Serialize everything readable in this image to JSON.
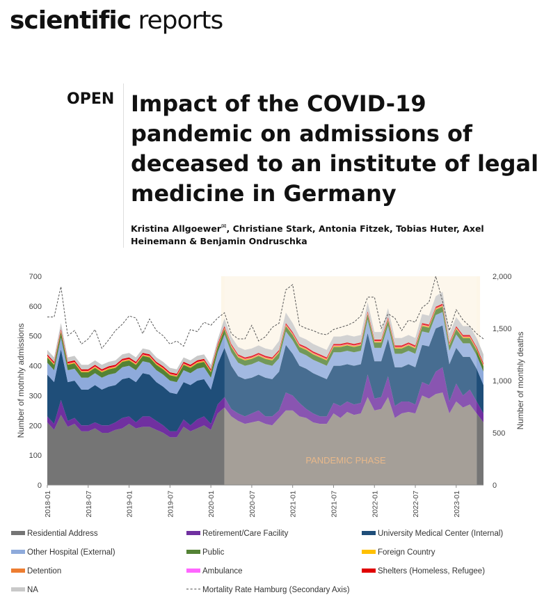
{
  "journal": {
    "bold": "scientific",
    "regular": "reports"
  },
  "badge": "OPEN",
  "title": "Impact of the COVID-19 pandemic on admissions of deceased to an institute of legal medicine in Germany",
  "authors": {
    "first": "Kristina Allgoewer",
    "mail_icon": "envelope-icon",
    "rest": ", Christiane Stark, Antonia Fitzek, Tobias Huter, Axel Heinemann & Benjamin Ondruschka"
  },
  "chart_data": {
    "type": "area",
    "stacked": true,
    "months": [
      "2018-01",
      "2018-02",
      "2018-03",
      "2018-04",
      "2018-05",
      "2018-06",
      "2018-07",
      "2018-08",
      "2018-09",
      "2018-10",
      "2018-11",
      "2018-12",
      "2019-01",
      "2019-02",
      "2019-03",
      "2019-04",
      "2019-05",
      "2019-06",
      "2019-07",
      "2019-08",
      "2019-09",
      "2019-10",
      "2019-11",
      "2019-12",
      "2020-01",
      "2020-02",
      "2020-03",
      "2020-04",
      "2020-05",
      "2020-06",
      "2020-07",
      "2020-08",
      "2020-09",
      "2020-10",
      "2020-11",
      "2020-12",
      "2021-01",
      "2021-02",
      "2021-03",
      "2021-04",
      "2021-05",
      "2021-06",
      "2021-07",
      "2021-08",
      "2021-09",
      "2021-10",
      "2021-11",
      "2021-12",
      "2022-01",
      "2022-02",
      "2022-03",
      "2022-04",
      "2022-05",
      "2022-06",
      "2022-07",
      "2022-08",
      "2022-09",
      "2022-10",
      "2022-11",
      "2022-12",
      "2023-01",
      "2023-02",
      "2023-03",
      "2023-04",
      "2023-05"
    ],
    "xtick_labels": [
      "2018-01",
      "2018-07",
      "2019-01",
      "2019-07",
      "2020-01",
      "2020-07",
      "2021-01",
      "2021-07",
      "2022-01",
      "2022-07",
      "2023-01"
    ],
    "ylabel": "Number of  motnhly admissions",
    "ylim": [
      0,
      700
    ],
    "yticks": [
      "0",
      "100",
      "200",
      "300",
      "400",
      "500",
      "600",
      "700"
    ],
    "y2label": "Number of monthly deaths",
    "y2lim": [
      0,
      2000
    ],
    "y2ticks": [
      "0",
      "500",
      "1,000",
      "1,500",
      "2,000"
    ],
    "annotation": "PANDEMIC PHASE",
    "pandemic_phase": {
      "start": "2020-03",
      "end": "2023-04"
    },
    "series": [
      {
        "name": "Residential Address",
        "color": "#757575",
        "pandemic_color": "#928a82",
        "values": [
          210,
          185,
          235,
          195,
          205,
          180,
          180,
          190,
          175,
          175,
          185,
          190,
          205,
          190,
          195,
          195,
          185,
          175,
          160,
          160,
          195,
          180,
          190,
          200,
          185,
          240,
          260,
          230,
          215,
          205,
          210,
          215,
          205,
          200,
          225,
          250,
          250,
          230,
          225,
          210,
          205,
          205,
          240,
          225,
          245,
          235,
          240,
          295,
          250,
          255,
          295,
          225,
          240,
          245,
          240,
          300,
          290,
          305,
          310,
          240,
          280,
          260,
          270,
          240,
          210
        ]
      },
      {
        "name": "Retirement/Care Facility",
        "color": "#7030a0",
        "values": [
          20,
          20,
          50,
          20,
          20,
          20,
          20,
          20,
          25,
          25,
          25,
          35,
          25,
          20,
          35,
          35,
          30,
          25,
          20,
          20,
          25,
          20,
          30,
          30,
          20,
          30,
          35,
          25,
          25,
          25,
          30,
          35,
          25,
          30,
          25,
          60,
          50,
          45,
          30,
          30,
          25,
          25,
          35,
          40,
          35,
          35,
          35,
          75,
          40,
          40,
          70,
          40,
          40,
          35,
          30,
          45,
          45,
          75,
          85,
          40,
          60,
          40,
          50,
          40,
          30
        ]
      },
      {
        "name": "University Medical Center (Internal)",
        "color": "#1f4e79",
        "values": [
          140,
          140,
          170,
          130,
          125,
          120,
          120,
          125,
          120,
          130,
          125,
          130,
          130,
          135,
          145,
          140,
          130,
          130,
          130,
          125,
          125,
          135,
          130,
          125,
          115,
          135,
          165,
          145,
          125,
          125,
          120,
          120,
          130,
          125,
          130,
          160,
          140,
          125,
          135,
          135,
          135,
          125,
          125,
          135,
          125,
          130,
          130,
          140,
          125,
          120,
          125,
          130,
          115,
          125,
          125,
          125,
          130,
          145,
          140,
          125,
          120,
          130,
          110,
          110,
          95
        ]
      },
      {
        "name": "Other Hospital (External)",
        "color": "#8eaadb",
        "values": [
          40,
          40,
          40,
          40,
          40,
          40,
          40,
          40,
          40,
          40,
          40,
          40,
          40,
          40,
          40,
          40,
          40,
          40,
          40,
          40,
          40,
          40,
          40,
          40,
          40,
          40,
          45,
          45,
          45,
          45,
          45,
          45,
          45,
          45,
          45,
          45,
          45,
          45,
          45,
          45,
          45,
          45,
          45,
          45,
          45,
          45,
          45,
          45,
          45,
          45,
          45,
          45,
          45,
          45,
          45,
          45,
          45,
          45,
          45,
          45,
          45,
          45,
          45,
          45,
          45
        ]
      },
      {
        "name": "Public",
        "color": "#548235",
        "values": [
          18,
          18,
          18,
          18,
          18,
          18,
          18,
          18,
          18,
          18,
          18,
          18,
          18,
          18,
          18,
          18,
          18,
          18,
          18,
          18,
          18,
          18,
          18,
          18,
          18,
          18,
          18,
          18,
          18,
          18,
          18,
          18,
          18,
          18,
          18,
          18,
          18,
          18,
          18,
          18,
          18,
          18,
          18,
          18,
          18,
          18,
          18,
          18,
          18,
          18,
          18,
          18,
          18,
          18,
          18,
          18,
          18,
          18,
          18,
          18,
          18,
          18,
          18,
          18,
          18
        ]
      },
      {
        "name": "Foreign Country",
        "color": "#ffc000",
        "values": [
          2,
          2,
          2,
          2,
          2,
          2,
          2,
          2,
          2,
          2,
          2,
          2,
          2,
          2,
          2,
          2,
          2,
          2,
          2,
          2,
          2,
          2,
          2,
          2,
          2,
          2,
          2,
          2,
          2,
          2,
          2,
          2,
          2,
          2,
          2,
          2,
          2,
          2,
          2,
          2,
          2,
          2,
          2,
          2,
          2,
          2,
          2,
          2,
          2,
          2,
          2,
          2,
          2,
          2,
          2,
          2,
          2,
          2,
          2,
          2,
          2,
          2,
          2,
          2,
          2
        ]
      },
      {
        "name": "Detention",
        "color": "#ed7d31",
        "values": [
          2,
          2,
          2,
          2,
          2,
          2,
          2,
          2,
          2,
          2,
          2,
          2,
          2,
          2,
          2,
          2,
          2,
          2,
          2,
          2,
          2,
          2,
          2,
          2,
          2,
          2,
          2,
          2,
          2,
          2,
          2,
          2,
          2,
          2,
          2,
          2,
          2,
          2,
          2,
          2,
          2,
          2,
          2,
          2,
          2,
          2,
          2,
          2,
          2,
          2,
          2,
          2,
          2,
          2,
          2,
          2,
          2,
          2,
          2,
          2,
          2,
          2,
          2,
          2,
          2
        ]
      },
      {
        "name": "Ambulance",
        "color": "#ff66ff",
        "values": [
          1,
          1,
          1,
          1,
          1,
          1,
          1,
          1,
          1,
          1,
          1,
          1,
          1,
          1,
          1,
          1,
          1,
          1,
          1,
          1,
          1,
          1,
          1,
          1,
          1,
          1,
          1,
          1,
          1,
          1,
          1,
          1,
          1,
          1,
          1,
          1,
          1,
          1,
          1,
          1,
          1,
          1,
          1,
          1,
          1,
          1,
          1,
          1,
          1,
          1,
          1,
          1,
          1,
          1,
          1,
          1,
          1,
          1,
          1,
          1,
          1,
          1,
          1,
          1,
          1
        ]
      },
      {
        "name": "Shelters (Homeless, Refugee)",
        "color": "#e00000",
        "values": [
          5,
          5,
          5,
          5,
          5,
          5,
          5,
          5,
          5,
          5,
          5,
          5,
          5,
          5,
          5,
          5,
          5,
          5,
          5,
          5,
          5,
          5,
          5,
          5,
          5,
          5,
          5,
          5,
          5,
          5,
          5,
          5,
          5,
          5,
          5,
          5,
          5,
          5,
          5,
          5,
          5,
          5,
          5,
          5,
          5,
          5,
          5,
          5,
          5,
          5,
          5,
          5,
          5,
          5,
          5,
          5,
          5,
          5,
          5,
          5,
          5,
          5,
          5,
          5,
          5
        ]
      },
      {
        "name": "NA",
        "color": "#c9c9c9",
        "values": [
          15,
          15,
          20,
          15,
          15,
          15,
          15,
          15,
          15,
          15,
          15,
          15,
          15,
          15,
          15,
          15,
          15,
          15,
          15,
          15,
          15,
          15,
          15,
          15,
          15,
          15,
          25,
          25,
          25,
          25,
          25,
          25,
          25,
          25,
          30,
          35,
          30,
          25,
          25,
          25,
          25,
          25,
          25,
          25,
          25,
          25,
          25,
          30,
          25,
          25,
          30,
          25,
          25,
          25,
          25,
          30,
          30,
          35,
          40,
          30,
          30,
          30,
          30,
          30,
          30
        ]
      }
    ],
    "secondary_series": {
      "name": "Mortality Rate Hamburg (Secondary Axis)",
      "color": "#555555",
      "values": [
        1610,
        1610,
        1900,
        1430,
        1480,
        1350,
        1400,
        1490,
        1310,
        1390,
        1480,
        1540,
        1620,
        1600,
        1450,
        1590,
        1480,
        1430,
        1350,
        1380,
        1330,
        1490,
        1470,
        1560,
        1530,
        1600,
        1650,
        1450,
        1400,
        1400,
        1530,
        1380,
        1420,
        1510,
        1550,
        1870,
        1920,
        1530,
        1500,
        1480,
        1450,
        1440,
        1490,
        1510,
        1530,
        1560,
        1620,
        1800,
        1800,
        1500,
        1640,
        1600,
        1480,
        1580,
        1560,
        1700,
        1750,
        2000,
        1760,
        1480,
        1680,
        1580,
        1520,
        1450,
        1400
      ]
    }
  },
  "legend": [
    {
      "label": "Residential Address",
      "color": "#757575"
    },
    {
      "label": "Retirement/Care Facility",
      "color": "#7030a0"
    },
    {
      "label": "University Medical Center (Internal)",
      "color": "#1f4e79"
    },
    {
      "label": "Other Hospital (External)",
      "color": "#8eaadb"
    },
    {
      "label": "Public",
      "color": "#548235"
    },
    {
      "label": "Foreign Country",
      "color": "#ffc000"
    },
    {
      "label": "Detention",
      "color": "#ed7d31"
    },
    {
      "label": "Ambulance",
      "color": "#ff66ff"
    },
    {
      "label": "Shelters (Homeless, Refugee)",
      "color": "#e00000"
    },
    {
      "label": "NA",
      "color": "#c9c9c9"
    },
    {
      "label": "Mortality Rate Hamburg (Secondary Axis)",
      "color": "#555555",
      "dashed": true
    }
  ]
}
